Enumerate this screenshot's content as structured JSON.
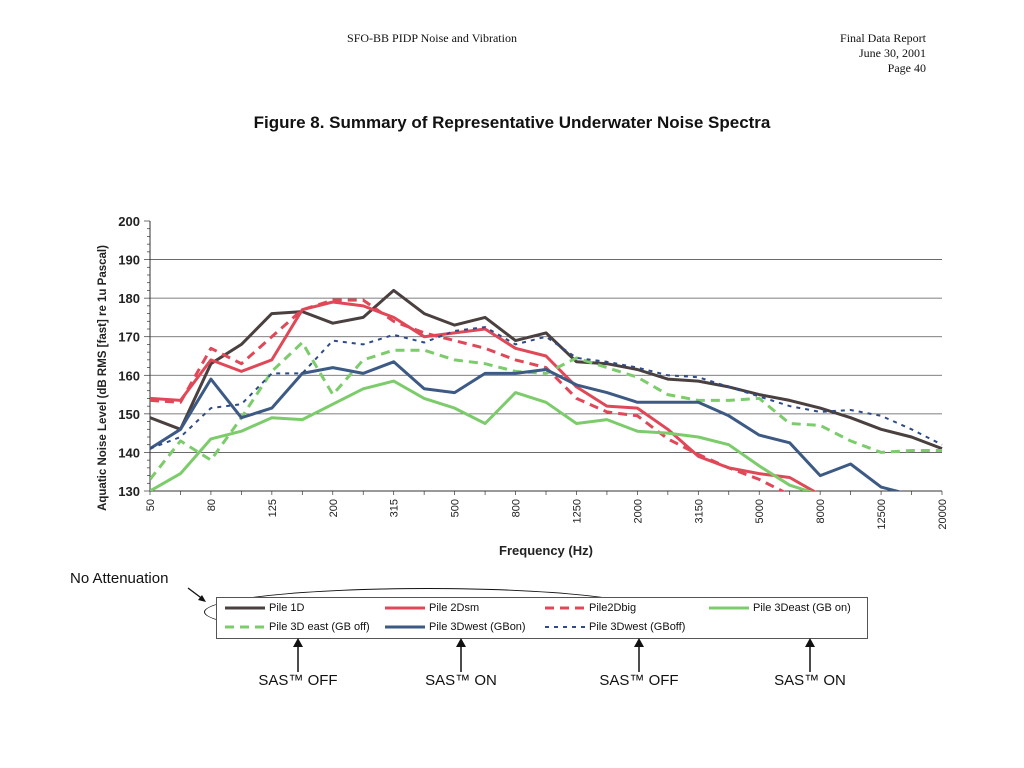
{
  "header": {
    "doc_title": "SFO-BB PIDP Noise and Vibration",
    "report": "Final Data Report",
    "date": "June 30, 2001",
    "page": "Page 40"
  },
  "figure_title": "Figure 8.  Summary of Representative Underwater Noise Spectra",
  "chart_data": {
    "type": "line",
    "xlabel": "Frequency (Hz)",
    "ylabel": "Aquatic Noise Level (dB RMS [fast] re 1u Pascal)",
    "ylim": [
      130,
      200
    ],
    "yticks": [
      130,
      140,
      150,
      160,
      170,
      180,
      190,
      200
    ],
    "grid": true,
    "x": [
      "50",
      "63",
      "80",
      "100",
      "125",
      "160",
      "200",
      "250",
      "315",
      "400",
      "500",
      "630",
      "800",
      "1000",
      "1250",
      "1600",
      "2000",
      "2500",
      "3150",
      "4000",
      "5000",
      "6300",
      "8000",
      "10000",
      "12500",
      "16000",
      "20000"
    ],
    "x_tick_labels": [
      "50",
      "80",
      "125",
      "200",
      "315",
      "500",
      "800",
      "1250",
      "2000",
      "3150",
      "5000",
      "8000",
      "12500",
      "20000"
    ],
    "series": [
      {
        "name": "Pile 1D",
        "color": "#4a4040",
        "style": "solid",
        "values": [
          149,
          146,
          163,
          168,
          176,
          176.5,
          173.5,
          175,
          182,
          176,
          173,
          175,
          169,
          171,
          163.5,
          163,
          161.5,
          159,
          158.5,
          157,
          155,
          153.5,
          151.5,
          149,
          146,
          144,
          141
        ]
      },
      {
        "name": "Pile 2Dsm",
        "color": "#e04858",
        "style": "solid",
        "values": [
          154,
          153.5,
          164,
          161,
          164,
          177,
          179,
          178,
          175,
          170,
          171,
          172,
          167,
          165,
          157,
          152,
          151.5,
          146,
          139,
          136,
          134.5,
          133.5,
          129,
          129,
          129,
          129,
          129
        ]
      },
      {
        "name": "Pile2Dbig",
        "color": "#e04858",
        "style": "dashed",
        "values": [
          153.5,
          153,
          167,
          163,
          170,
          177,
          179.5,
          179.5,
          174,
          171,
          169,
          167,
          164,
          162,
          154,
          150.5,
          149.5,
          143.5,
          139.5,
          136,
          133,
          129,
          129,
          129,
          129,
          129,
          129
        ]
      },
      {
        "name": "Pile 3Deast (GB on)",
        "color": "#7ccc6c",
        "style": "solid",
        "values": [
          130,
          134.5,
          143.5,
          145.5,
          149,
          148.5,
          152.5,
          156.5,
          158.5,
          154,
          151.5,
          147.5,
          155.5,
          153,
          147.5,
          148.5,
          145.5,
          145,
          144,
          142,
          136.5,
          131.5,
          129,
          129,
          129,
          129,
          129
        ]
      },
      {
        "name": "Pile 3D east (GB off)",
        "color": "#7ccc6c",
        "style": "dashed",
        "values": [
          133,
          143,
          138,
          149,
          161,
          168.5,
          155,
          164,
          166.5,
          166.5,
          164,
          163,
          161,
          160.5,
          164.5,
          162,
          159.5,
          155,
          153.5,
          153.5,
          154,
          147.5,
          147,
          143,
          140,
          140.5,
          140.5
        ]
      },
      {
        "name": "Pile 3Dwest (GBon)",
        "color": "#3d5a85",
        "style": "solid",
        "values": [
          141,
          146,
          159,
          149,
          151.5,
          160.5,
          162,
          160.5,
          163.5,
          156.5,
          155.5,
          160.5,
          160.5,
          161.5,
          157.5,
          155.5,
          153,
          153,
          153,
          149.5,
          144.5,
          142.5,
          134,
          137,
          131,
          129,
          129
        ]
      },
      {
        "name": "Pile 3Dwest (GBoff)",
        "color": "#2e4a8a",
        "style": "dotted",
        "values": [
          141,
          144,
          151.5,
          152.5,
          160.5,
          160.5,
          169,
          168,
          170.5,
          168.5,
          171.5,
          172.5,
          168,
          170,
          164.5,
          163.5,
          162,
          160,
          159.5,
          157,
          154.5,
          152,
          150.5,
          151,
          149.5,
          146,
          142
        ]
      }
    ]
  },
  "annotations": {
    "no_attenuation": "No Attenuation",
    "sas_labels": [
      "SAS™ OFF",
      "SAS™ ON",
      "SAS™ OFF",
      "SAS™ ON"
    ]
  }
}
